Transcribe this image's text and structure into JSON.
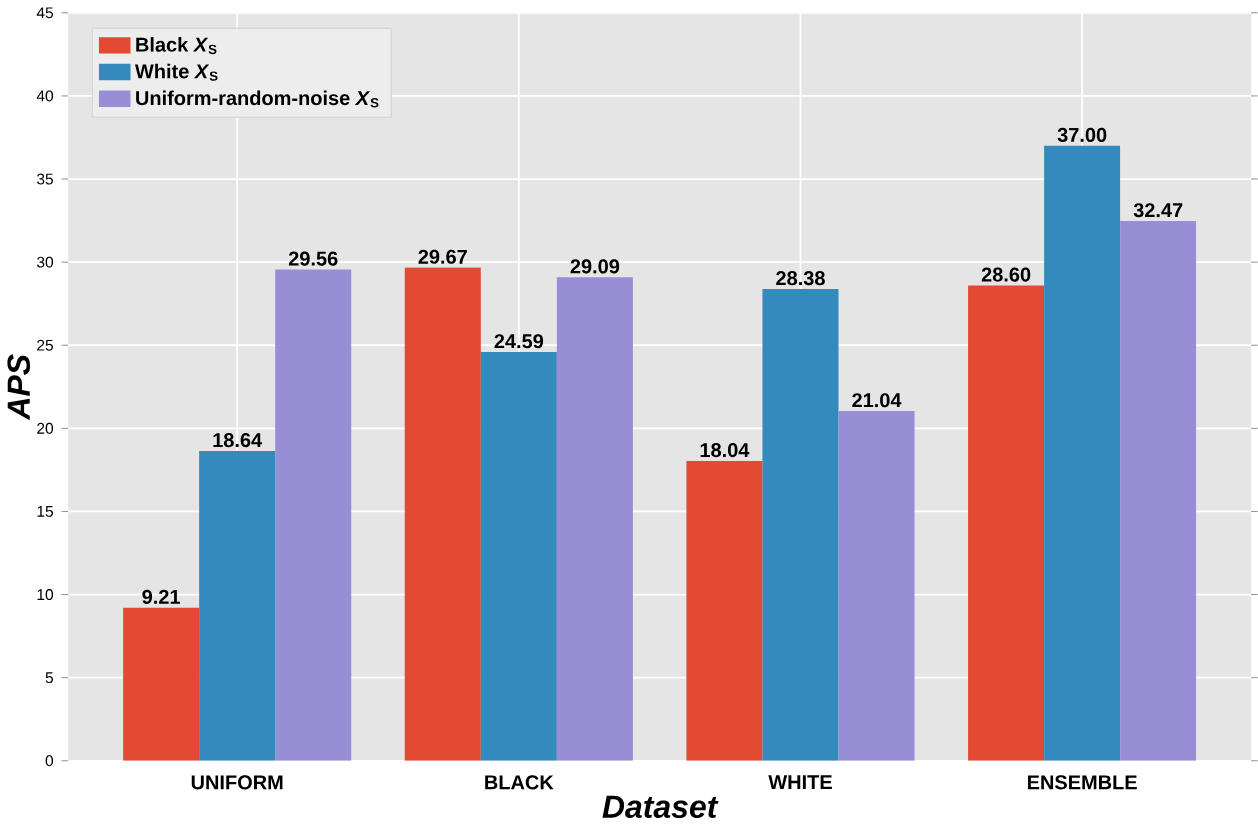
{
  "chart_data": {
    "type": "bar",
    "xlabel": "Dataset",
    "ylabel": "APS",
    "categories": [
      "UNIFORM",
      "BLACK",
      "WHITE",
      "ENSEMBLE"
    ],
    "series": [
      {
        "name": "Black *X*$_{S}$",
        "color": "#e24a33",
        "values": [
          9.21,
          29.67,
          18.04,
          28.6
        ],
        "value_labels": [
          "9.21",
          "29.67",
          "18.04",
          "28.60"
        ]
      },
      {
        "name": "White *X*$_{S}$",
        "color": "#348abd",
        "values": [
          18.64,
          24.59,
          28.38,
          37.0
        ],
        "value_labels": [
          "18.64",
          "24.59",
          "28.38",
          "37.00"
        ]
      },
      {
        "name": "Uniform-random-noise *X*$_{S}$",
        "color": "#988ed5",
        "values": [
          29.56,
          29.09,
          21.04,
          32.47
        ],
        "value_labels": [
          "29.56",
          "29.09",
          "21.04",
          "32.47"
        ]
      }
    ],
    "ylim": [
      0,
      45
    ],
    "yticks": [
      0,
      5,
      10,
      15,
      20,
      25,
      30,
      35,
      40,
      45
    ],
    "grid": true,
    "legend": "top left"
  }
}
